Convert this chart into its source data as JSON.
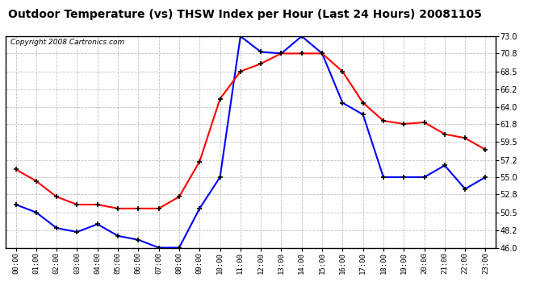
{
  "title": "Outdoor Temperature (vs) THSW Index per Hour (Last 24 Hours) 20081105",
  "copyright": "Copyright 2008 Cartronics.com",
  "hours": [
    "00:00",
    "01:00",
    "02:00",
    "03:00",
    "04:00",
    "05:00",
    "06:00",
    "07:00",
    "08:00",
    "09:00",
    "10:00",
    "11:00",
    "12:00",
    "13:00",
    "14:00",
    "15:00",
    "16:00",
    "17:00",
    "18:00",
    "19:00",
    "20:00",
    "21:00",
    "22:00",
    "23:00"
  ],
  "temp_blue": [
    51.5,
    50.5,
    48.5,
    48.0,
    49.0,
    47.5,
    47.0,
    46.0,
    46.0,
    51.0,
    55.0,
    73.0,
    71.0,
    70.8,
    73.0,
    70.8,
    64.5,
    63.0,
    55.0,
    55.0,
    55.0,
    56.5,
    53.5,
    55.0
  ],
  "thsw_red": [
    56.0,
    54.5,
    52.5,
    51.5,
    51.5,
    51.0,
    51.0,
    51.0,
    52.5,
    57.0,
    65.0,
    68.5,
    69.5,
    70.8,
    70.8,
    70.8,
    68.5,
    64.5,
    62.2,
    61.8,
    62.0,
    60.5,
    60.0,
    58.5
  ],
  "temp_color": "#0000ff",
  "thsw_color": "#ff0000",
  "ylim": [
    46.0,
    73.0
  ],
  "yticks": [
    46.0,
    48.2,
    50.5,
    52.8,
    55.0,
    57.2,
    59.5,
    61.8,
    64.0,
    66.2,
    68.5,
    70.8,
    73.0
  ],
  "bg_color": "#ffffff",
  "plot_bg_color": "#ffffff",
  "grid_color": "#bbbbbb",
  "title_fontsize": 10,
  "copyright_fontsize": 6.5
}
